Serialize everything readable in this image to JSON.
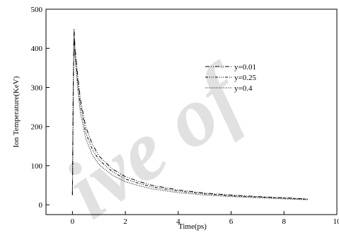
{
  "chart_data": {
    "type": "line",
    "xlabel": "Time(ps)",
    "ylabel": "Ion Temperature(KeV)",
    "xlim": [
      -1,
      10
    ],
    "ylim": [
      -25,
      500
    ],
    "xticks": [
      0,
      2,
      4,
      6,
      8,
      10
    ],
    "yticks": [
      0,
      100,
      200,
      300,
      400,
      500
    ],
    "legend_position": "upper-right",
    "series": [
      {
        "name": "y=0.01",
        "dash": "dash-dot-dot",
        "x": [
          0.0,
          0.03,
          0.06,
          0.1,
          0.2,
          0.3,
          0.5,
          0.75,
          1.0,
          1.5,
          2.0,
          2.5,
          3.0,
          4.0,
          5.0,
          6.0,
          7.0,
          8.0,
          8.9
        ],
        "y": [
          25,
          300,
          450,
          400,
          330,
          270,
          200,
          155,
          125,
          92,
          72,
          60,
          50,
          38,
          30,
          25,
          21,
          18,
          15
        ]
      },
      {
        "name": "y=0.25",
        "dash": "dash-dot-dot-dot",
        "x": [
          0.0,
          0.03,
          0.06,
          0.1,
          0.2,
          0.3,
          0.5,
          0.75,
          1.0,
          1.5,
          2.0,
          2.5,
          3.0,
          4.0,
          5.0,
          6.0,
          7.0,
          8.0,
          8.9
        ],
        "y": [
          25,
          290,
          440,
          390,
          315,
          255,
          185,
          142,
          115,
          85,
          66,
          55,
          46,
          35,
          28,
          23,
          20,
          17,
          14
        ]
      },
      {
        "name": "y=0.4",
        "dash": "dotted",
        "x": [
          0.0,
          0.03,
          0.06,
          0.1,
          0.2,
          0.3,
          0.5,
          0.75,
          1.0,
          1.5,
          2.0,
          2.5,
          3.0,
          4.0,
          5.0,
          6.0,
          7.0,
          8.0,
          8.9
        ],
        "y": [
          25,
          280,
          425,
          375,
          295,
          235,
          170,
          128,
          103,
          76,
          59,
          49,
          41,
          31,
          25,
          21,
          18,
          15,
          13
        ]
      }
    ]
  }
}
